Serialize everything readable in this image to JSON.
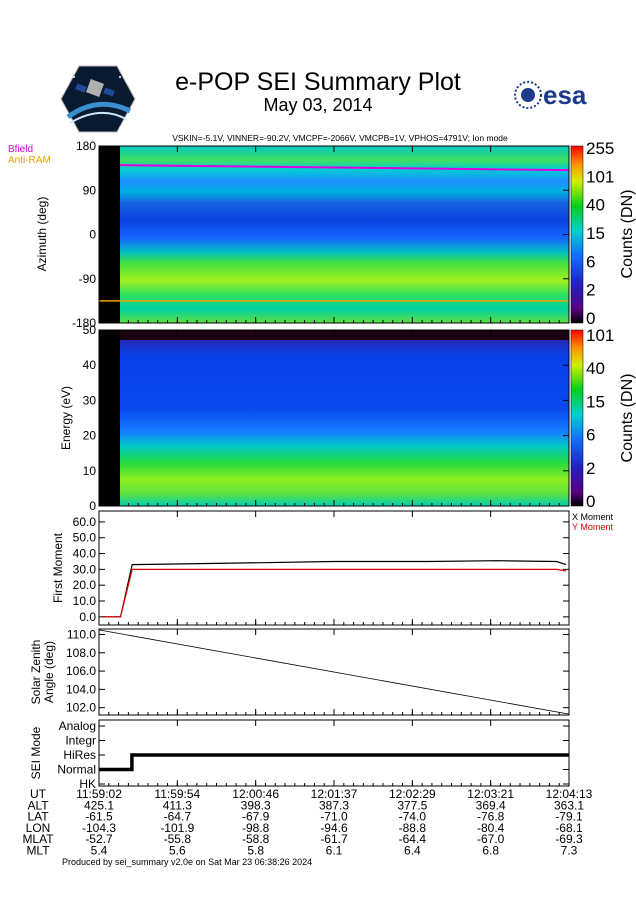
{
  "header": {
    "title": "e-POP SEI Summary Plot",
    "date": "May 03, 2014",
    "params": "VSKIN=-5.1V, VINNER=-90.2V, VMCPF=-2066V, VMCPB=1V, VPHOS=4791V; Ion mode",
    "esa_logo_text": "esa"
  },
  "footer": "Produced by sei_summary v2.0e on Sat Mar 23 06:38:26 2024",
  "colors": {
    "bfield": "#e000e0",
    "antiram": "#f0a000",
    "y_moment": "#e00000",
    "x_moment": "#000000",
    "esa_blue": "#1c3a8c"
  },
  "chart_data": [
    {
      "type": "heatmap",
      "name": "azimuth-spectrogram",
      "ylabel": "Azimuth (deg)",
      "ylim": [
        -180,
        180
      ],
      "yticks": [
        "180",
        "90",
        "0",
        "-90",
        "-180"
      ],
      "legend": [
        {
          "label": "Bfield",
          "color": "#e000e0",
          "azimuth": 137
        },
        {
          "label": "Anti-RAM",
          "color": "#f0a000",
          "azimuth": -135
        }
      ],
      "colorbar": {
        "label": "Counts (DN)",
        "ticks": [
          "255",
          "101",
          "40",
          "15",
          "6",
          "2",
          "0"
        ]
      }
    },
    {
      "type": "heatmap",
      "name": "energy-spectrogram",
      "ylabel": "Energy (eV)",
      "ylim": [
        0,
        50
      ],
      "yticks": [
        "50",
        "40",
        "30",
        "20",
        "10",
        "0"
      ],
      "colorbar": {
        "label": "Counts (DN)",
        "ticks": [
          "101",
          "40",
          "15",
          "6",
          "2",
          "0"
        ]
      }
    },
    {
      "type": "line",
      "name": "first-moment",
      "ylabel": "First Moment",
      "ylim": [
        -2,
        65
      ],
      "yticks": [
        "60.0",
        "50.0",
        "40.0",
        "30.0",
        "20.0",
        "10.0",
        "0.0"
      ],
      "x": [
        0,
        0.04,
        0.065,
        0.3,
        0.5,
        0.7,
        0.85,
        0.98,
        1.0
      ],
      "series": [
        {
          "name": "X Moment",
          "color": "#000000",
          "values": [
            0,
            0,
            33,
            34,
            35,
            35,
            35.5,
            35,
            33
          ]
        },
        {
          "name": "Y Moment",
          "color": "#e00000",
          "values": [
            0,
            0,
            30,
            30,
            30,
            30,
            30,
            30,
            29
          ]
        }
      ]
    },
    {
      "type": "line",
      "name": "solar-zenith",
      "ylabel_lines": [
        "Solar Zenith",
        "Angle (deg)"
      ],
      "ylim": [
        101.2,
        110.6
      ],
      "yticks": [
        "110.0",
        "108.0",
        "106.0",
        "104.0",
        "102.0"
      ],
      "x": [
        0,
        1
      ],
      "series": [
        {
          "name": "SZA",
          "color": "#000000",
          "values": [
            110.5,
            101.3
          ]
        }
      ]
    },
    {
      "type": "line",
      "name": "sei-mode",
      "ylabel": "SEI Mode",
      "categories": [
        "Analog",
        "Integr",
        "HiRes",
        "Normal",
        "HK"
      ],
      "x": [
        0,
        0.04,
        0.04,
        0.07,
        0.07,
        1.0
      ],
      "series": [
        {
          "name": "mode",
          "values": [
            "Normal",
            "Normal",
            "Normal",
            "Normal",
            "HiRes",
            "HiRes"
          ]
        }
      ]
    }
  ],
  "ephemeris": {
    "labels": [
      "UT",
      "ALT",
      "LAT",
      "LON",
      "MLAT",
      "MLT"
    ],
    "columns": [
      [
        "11:59:02",
        "425.1",
        "-61.5",
        "-104.3",
        "-52.7",
        "5.4"
      ],
      [
        "11:59:54",
        "411.3",
        "-64.7",
        "-101.9",
        "-55.8",
        "5.6"
      ],
      [
        "12:00:46",
        "398.3",
        "-67.9",
        "-98.8",
        "-58.8",
        "5.8"
      ],
      [
        "12:01:37",
        "387.3",
        "-71.0",
        "-94.6",
        "-61.7",
        "6.1"
      ],
      [
        "12:02:29",
        "377.5",
        "-74.0",
        "-88.8",
        "-64.4",
        "6.4"
      ],
      [
        "12:03:21",
        "369.4",
        "-76.8",
        "-80.4",
        "-67.0",
        "6.8"
      ],
      [
        "12:04:13",
        "363.1",
        "-79.1",
        "-68.1",
        "-69.3",
        "7.3"
      ]
    ]
  }
}
